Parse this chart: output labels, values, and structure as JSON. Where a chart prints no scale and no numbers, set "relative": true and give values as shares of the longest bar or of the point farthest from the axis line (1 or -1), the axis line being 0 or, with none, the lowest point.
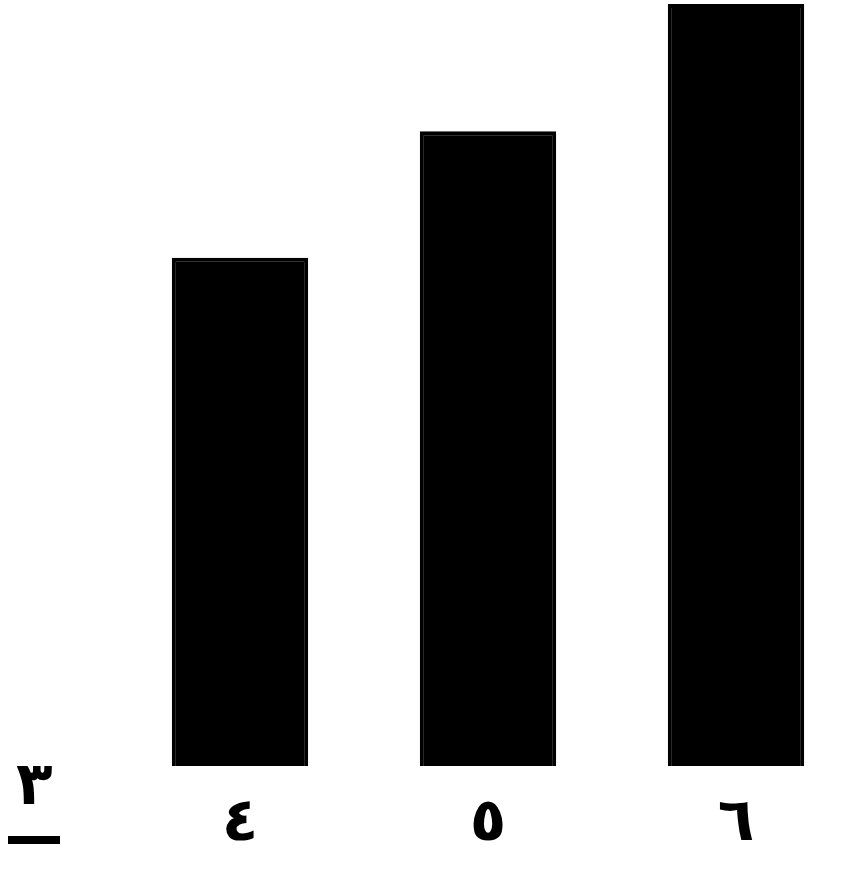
{
  "chart_data": {
    "type": "bar",
    "relative": true,
    "categories": [
      "٤",
      "٥",
      "٦"
    ],
    "values": [
      0.667,
      0.833,
      1
    ],
    "color": "#000000",
    "annotations": [
      "٣"
    ]
  }
}
